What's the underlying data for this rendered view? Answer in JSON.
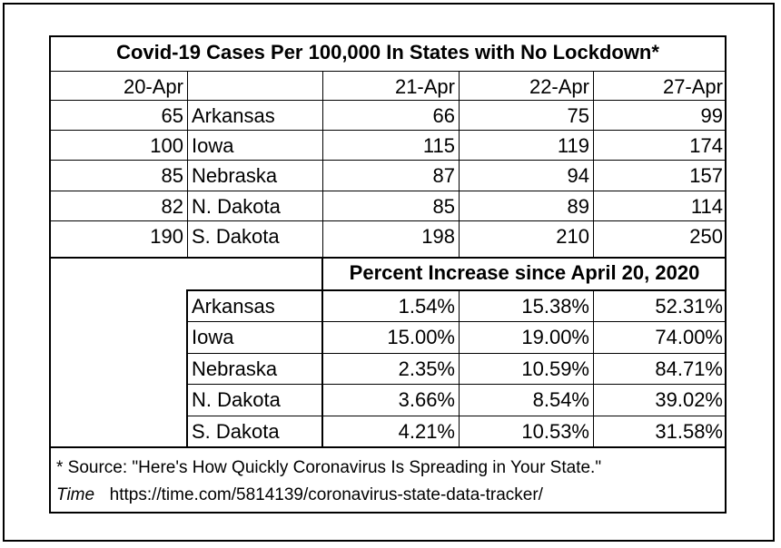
{
  "chart_data": {
    "type": "table",
    "title": "Covid-19 Cases Per 100,000 In States with No Lockdown*",
    "cases": {
      "columns": [
        "20-Apr",
        "",
        "21-Apr",
        "22-Apr",
        "27-Apr"
      ],
      "rows": [
        {
          "base": "65",
          "state": "Arkansas",
          "v": [
            "66",
            "75",
            "99"
          ]
        },
        {
          "base": "100",
          "state": "Iowa",
          "v": [
            "115",
            "119",
            "174"
          ]
        },
        {
          "base": "85",
          "state": "Nebraska",
          "v": [
            "87",
            "94",
            "157"
          ]
        },
        {
          "base": "82",
          "state": "N. Dakota",
          "v": [
            "85",
            "89",
            "114"
          ]
        },
        {
          "base": "190",
          "state": "S. Dakota",
          "v": [
            "198",
            "210",
            "250"
          ]
        }
      ]
    },
    "percent": {
      "title": "Percent Increase since April 20, 2020",
      "rows": [
        {
          "state": "Arkansas",
          "v": [
            "1.54%",
            "15.38%",
            "52.31%"
          ]
        },
        {
          "state": "Iowa",
          "v": [
            "15.00%",
            "19.00%",
            "74.00%"
          ]
        },
        {
          "state": "Nebraska",
          "v": [
            "2.35%",
            "10.59%",
            "84.71%"
          ]
        },
        {
          "state": "N. Dakota",
          "v": [
            "3.66%",
            "8.54%",
            "39.02%"
          ]
        },
        {
          "state": "S. Dakota",
          "v": [
            "4.21%",
            "10.53%",
            "31.58%"
          ]
        }
      ]
    },
    "source": {
      "line1": "* Source:  \"Here's How Quickly Coronavirus Is Spreading in Your State.\"",
      "publication": "Time",
      "url": "https://time.com/5814139/coronavirus-state-data-tracker/"
    }
  }
}
